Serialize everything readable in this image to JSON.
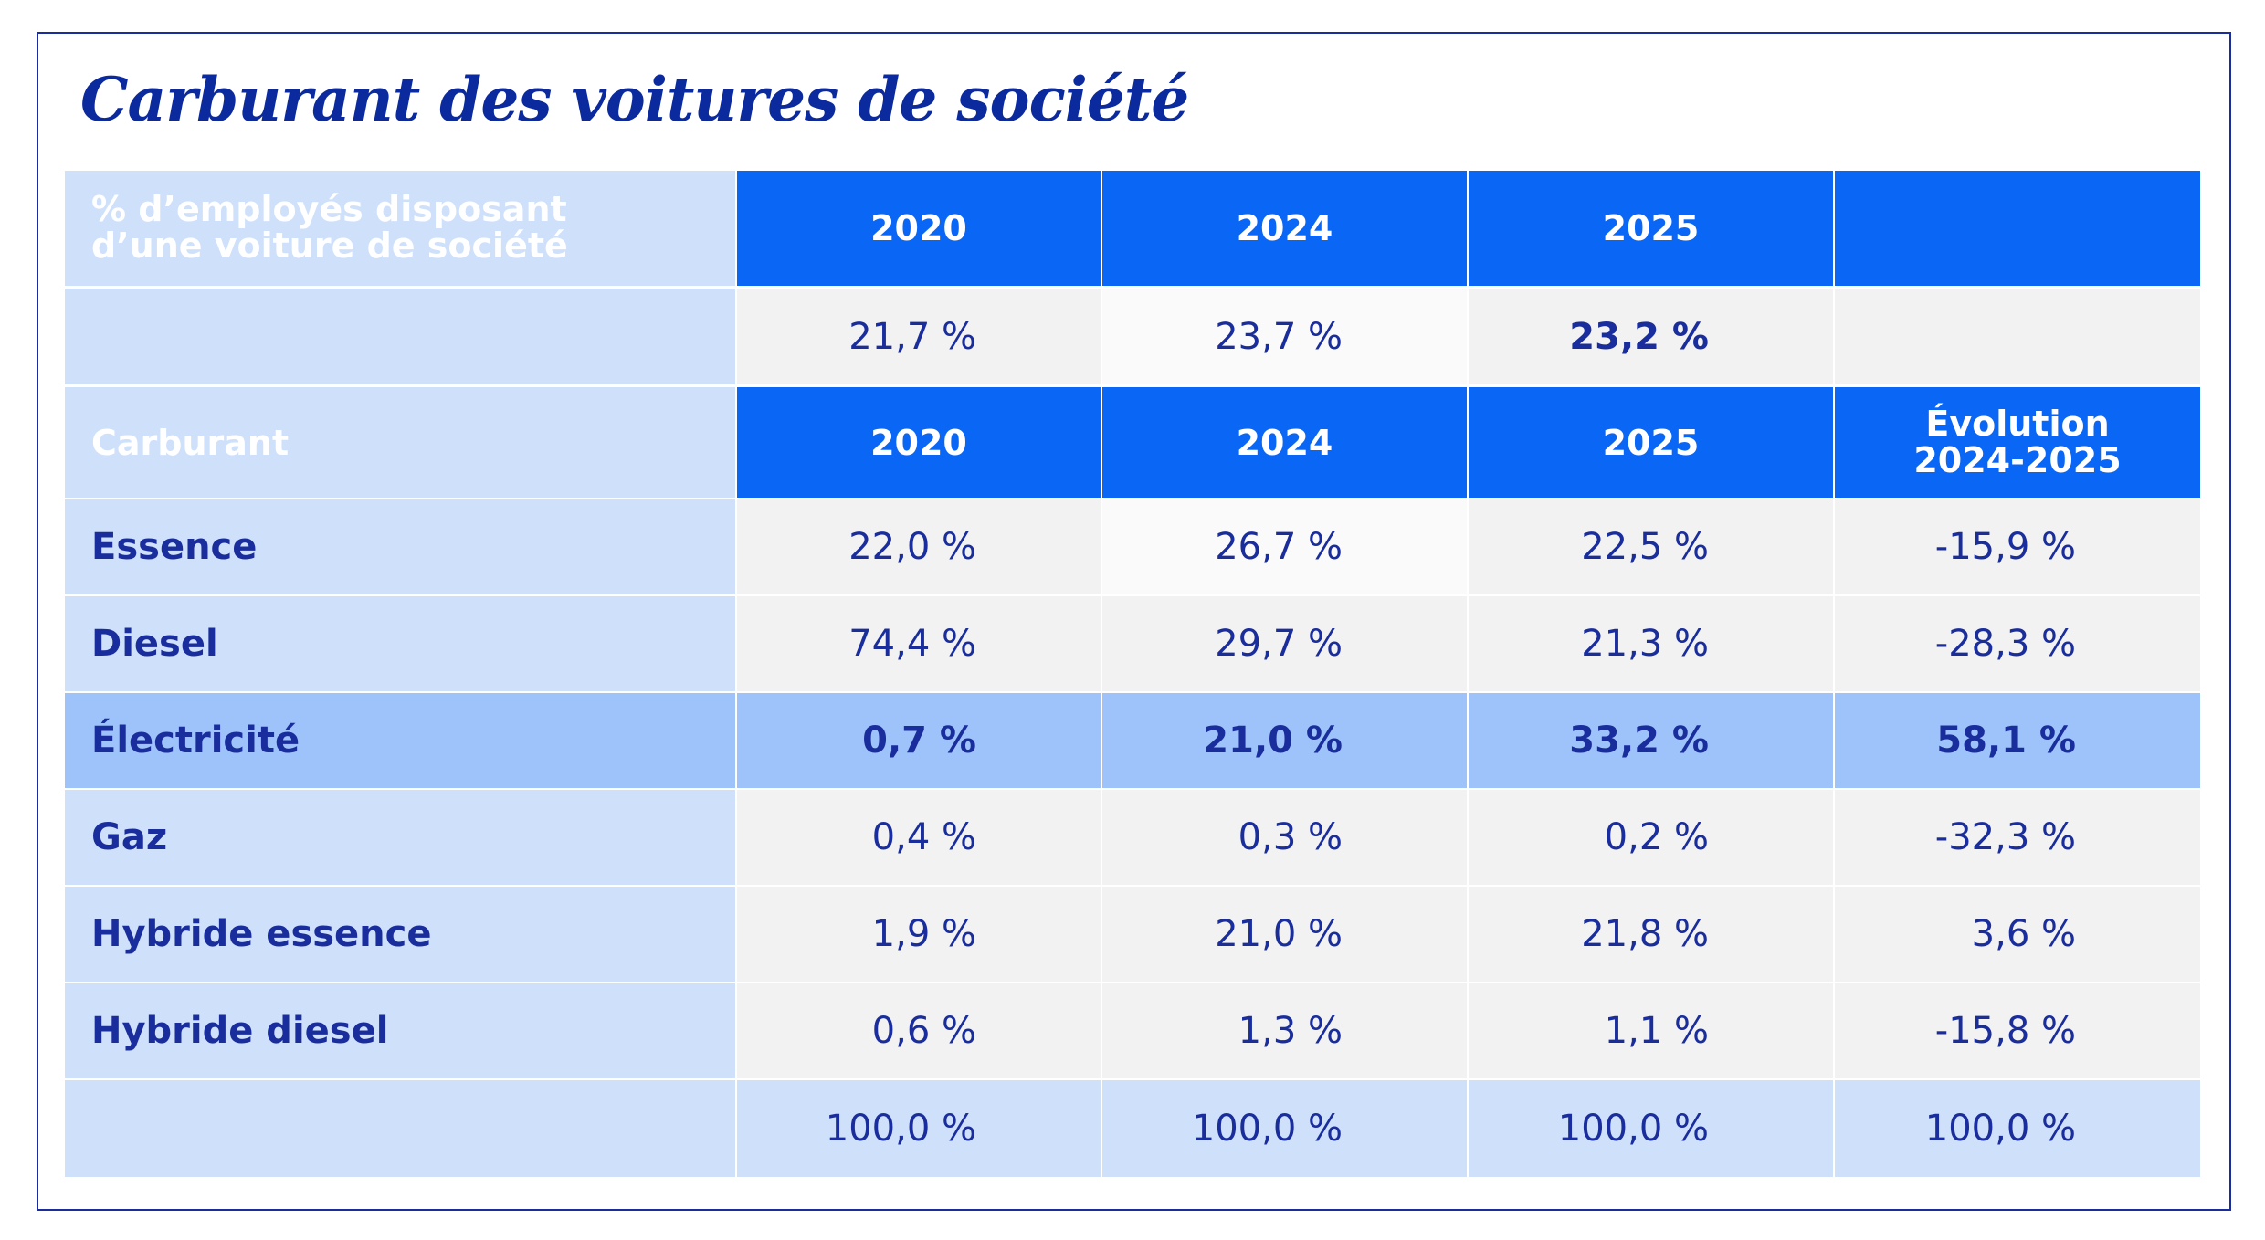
{
  "title": "Carburant des voitures de société",
  "table1": {
    "header": [
      "% d’employés disposant d’une voiture de société",
      "2020",
      "2024",
      "2025"
    ],
    "row": [
      "21,7 %",
      "23,7 %",
      "23,2 %"
    ]
  },
  "table2": {
    "header": [
      "Carburant",
      "2020",
      "2024",
      "2025",
      "Évolution 2024-2025"
    ],
    "rows": [
      [
        "Essence",
        "22,0 %",
        "26,7 %",
        "22,5 %",
        "-15,9 %"
      ],
      [
        "Diesel",
        "74,4 %",
        "29,7 %",
        "21,3 %",
        "-28,3 %"
      ],
      [
        "Électricité",
        "0,7 %",
        "21,0 %",
        "33,2 %",
        "58,1 %"
      ],
      [
        "Gaz",
        "0,4 %",
        "0,3 %",
        "0,2 %",
        "-32,3 %"
      ],
      [
        "Hybride essence",
        "1,9 %",
        "21,0 %",
        "21,8 %",
        "3,6 %"
      ],
      [
        "Hybride diesel",
        "0,6 %",
        "1,3 %",
        "1,1 %",
        "-15,8 %"
      ]
    ],
    "total": [
      "100,0 %",
      "100,0 %",
      "100,0 %",
      "100,0 %"
    ]
  }
}
